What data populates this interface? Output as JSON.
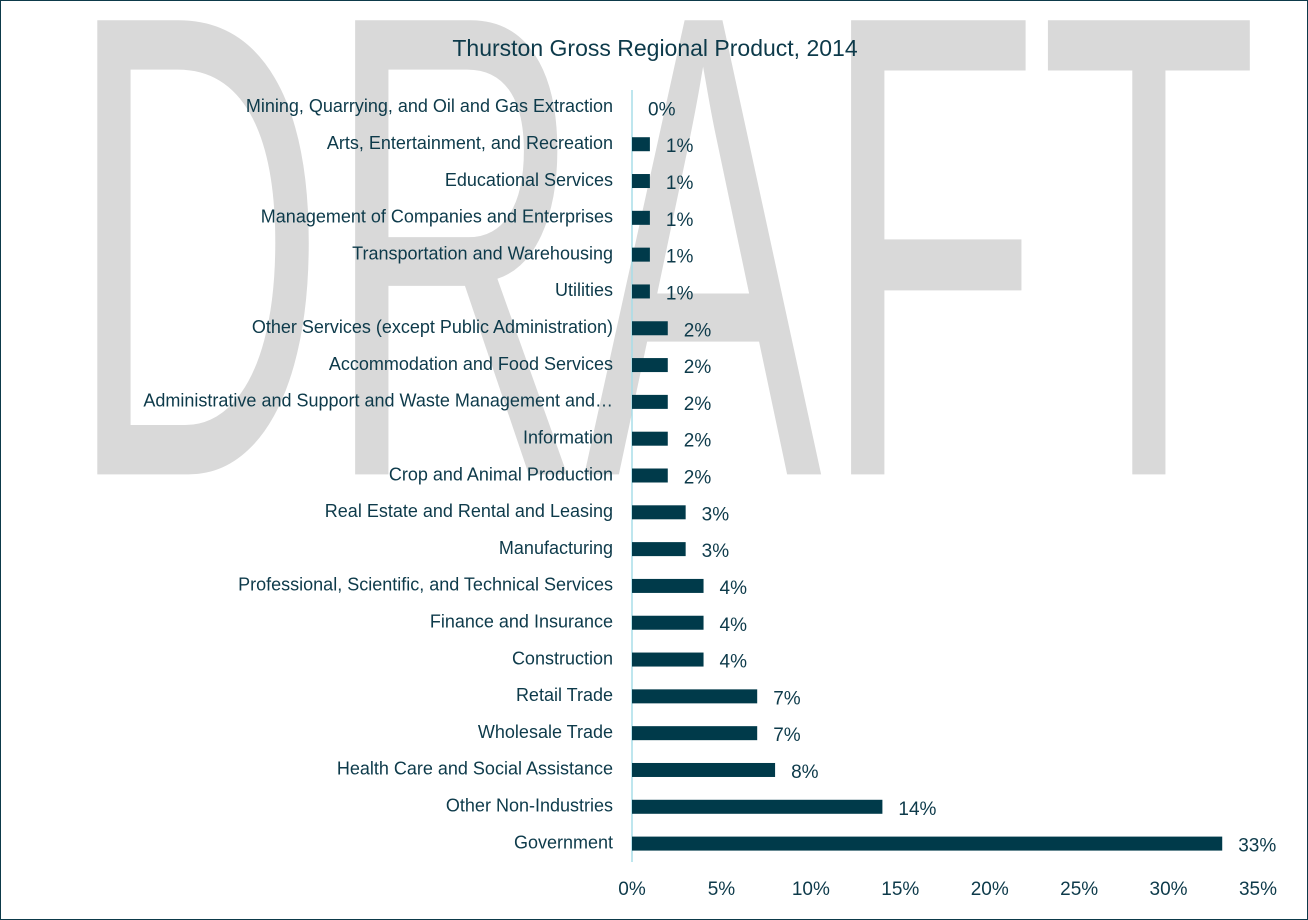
{
  "watermark": "DRAFT",
  "chart_data": {
    "type": "barh",
    "title": "Thurston Gross Regional Product, 2014",
    "categories": [
      "Mining, Quarrying, and Oil and Gas Extraction",
      "Arts, Entertainment, and Recreation",
      "Educational Services",
      "Management of Companies and Enterprises",
      "Transportation and Warehousing",
      "Utilities",
      "Other Services (except Public Administration)",
      "Accommodation and Food Services",
      "Administrative and Support and Waste Management and…",
      "Information",
      "Crop and Animal Production",
      "Real Estate and Rental and Leasing",
      "Manufacturing",
      "Professional, Scientific, and Technical Services",
      "Finance and Insurance",
      "Construction",
      "Retail Trade",
      "Wholesale Trade",
      "Health Care and Social Assistance",
      "Other Non-Industries",
      "Government"
    ],
    "values": [
      0,
      1,
      1,
      1,
      1,
      1,
      2,
      2,
      2,
      2,
      2,
      3,
      3,
      4,
      4,
      4,
      7,
      7,
      8,
      14,
      33
    ],
    "value_labels": [
      "0%",
      "1%",
      "1%",
      "1%",
      "1%",
      "1%",
      "2%",
      "2%",
      "2%",
      "2%",
      "2%",
      "3%",
      "3%",
      "4%",
      "4%",
      "4%",
      "7%",
      "7%",
      "8%",
      "14%",
      "33%"
    ],
    "color": "#003a4a",
    "xlim": [
      0,
      35
    ],
    "xticks": [
      {
        "value": 0,
        "label": "0%"
      },
      {
        "value": 5,
        "label": "5%"
      },
      {
        "value": 10,
        "label": "10%"
      },
      {
        "value": 15,
        "label": "15%"
      },
      {
        "value": 20,
        "label": "20%"
      },
      {
        "value": 25,
        "label": "25%"
      },
      {
        "value": 30,
        "label": "30%"
      },
      {
        "value": 35,
        "label": "35%"
      }
    ],
    "grid": false
  }
}
